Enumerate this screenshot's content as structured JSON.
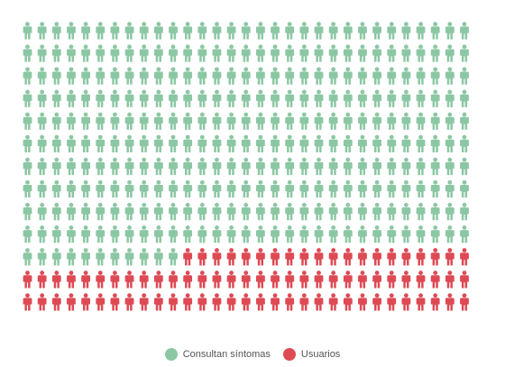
{
  "chart_data": {
    "type": "waffle",
    "icon": "person-icon",
    "rows": 13,
    "columns": 31,
    "series": [
      {
        "name": "Consultan síntomas",
        "count": 321,
        "color": "#8cc7a4"
      },
      {
        "name": "Usuarios",
        "count": 82,
        "color": "#de4a54"
      }
    ],
    "legend_position": "bottom-center"
  }
}
